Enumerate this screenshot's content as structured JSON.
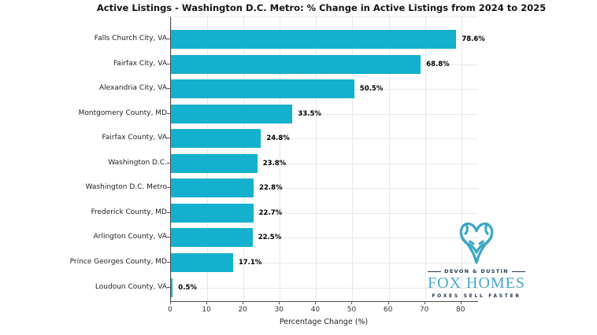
{
  "chart_data": {
    "type": "bar",
    "orientation": "horizontal",
    "title": "Active Listings - Washington D.C. Metro: % Change in Active Listings from 2024 to 2025",
    "xlabel": "Percentage Change (%)",
    "ylabel": "",
    "categories": [
      "Falls Church City, VA",
      "Fairfax City, VA",
      "Alexandria City, VA",
      "Montgomery County, MD",
      "Fairfax County, VA",
      "Washington D.C.",
      "Washington D.C. Metro",
      "Frederick County, MD",
      "Arlington County, VA",
      "Prince Georges County, MD",
      "Loudoun County, VA"
    ],
    "values": [
      78.6,
      68.8,
      50.5,
      33.5,
      24.8,
      23.8,
      22.8,
      22.7,
      22.5,
      17.1,
      0.5
    ],
    "value_label_suffix": "%",
    "xlim": [
      0,
      84.6
    ],
    "xticks": [
      0,
      10,
      20,
      30,
      40,
      50,
      60,
      70,
      80
    ],
    "grid": true,
    "legend": "none",
    "bar_color": "#15b0ce"
  },
  "watermark": {
    "brand_top": "DEVON & DUSTIN",
    "brand_name": "FOX HOMES",
    "brand_tagline": "FOXES SELL FASTER",
    "teal": "#3aa7c6",
    "navy": "#26384e"
  }
}
